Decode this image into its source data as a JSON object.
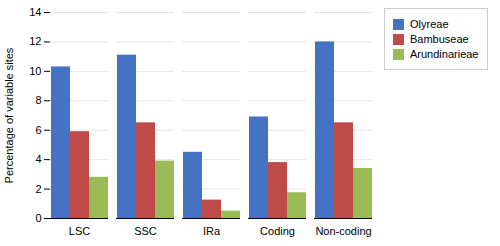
{
  "chart_data": {
    "type": "bar",
    "categories": [
      "LSC",
      "SSC",
      "IRa",
      "Coding",
      "Non-coding"
    ],
    "series": [
      {
        "name": "Olyreae",
        "color": "#4472C4",
        "values": [
          10.3,
          11.1,
          4.5,
          6.9,
          12.0
        ]
      },
      {
        "name": "Bambuseae",
        "color": "#BE4B48",
        "values": [
          5.9,
          6.5,
          1.25,
          3.8,
          6.5
        ]
      },
      {
        "name": "Arundinarieae",
        "color": "#9BBB59",
        "values": [
          2.8,
          3.9,
          0.5,
          1.75,
          3.4
        ]
      }
    ],
    "ylabel": "Percentage of variable sites",
    "ylim": [
      0,
      14
    ],
    "yticks": [
      0,
      2,
      4,
      6,
      8,
      10,
      12,
      14
    ],
    "grid": true,
    "legend": "right"
  }
}
